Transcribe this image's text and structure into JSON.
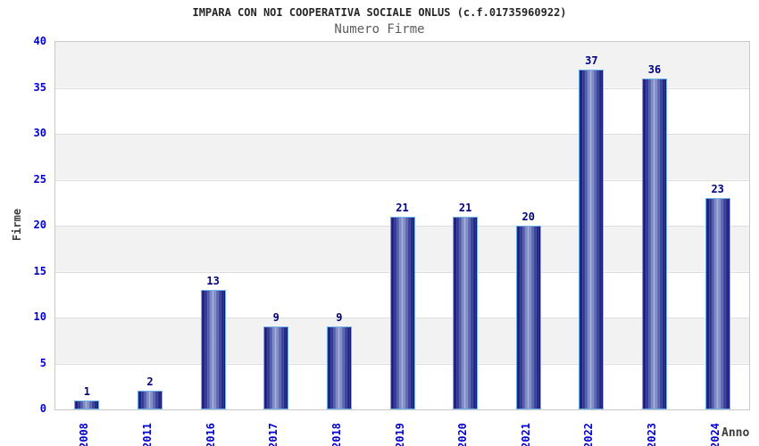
{
  "header": {
    "title": "IMPARA CON NOI COOPERATIVA SOCIALE ONLUS (c.f.01735960922)",
    "subtitle": "Numero Firme"
  },
  "chart_data": {
    "type": "bar",
    "title": "IMPARA CON NOI COOPERATIVA SOCIALE ONLUS (c.f.01735960922)",
    "subtitle": "Numero Firme",
    "xlabel": "Anno",
    "ylabel": "Firme",
    "categories": [
      "2008",
      "2011",
      "2016",
      "2017",
      "2018",
      "2019",
      "2020",
      "2021",
      "2022",
      "2023",
      "2024"
    ],
    "values": [
      1,
      2,
      13,
      9,
      9,
      21,
      21,
      20,
      37,
      36,
      23
    ],
    "ylim": [
      0,
      40
    ],
    "ytick_step": 5,
    "yticks": [
      0,
      5,
      10,
      15,
      20,
      25,
      30,
      35,
      40
    ],
    "grid": "horizontal-bands-alternating",
    "legend": "none",
    "colors": {
      "bar_edge": "#12127a",
      "bar_center": "#a0aede",
      "bar_border": "#6fb1e8",
      "tick_label_blue": "#0000d2",
      "value_label_navy": "#000080",
      "axis_title_gray": "#3c3c3c",
      "band_gray": "#f2f2f2",
      "band_white": "#ffffff"
    }
  }
}
